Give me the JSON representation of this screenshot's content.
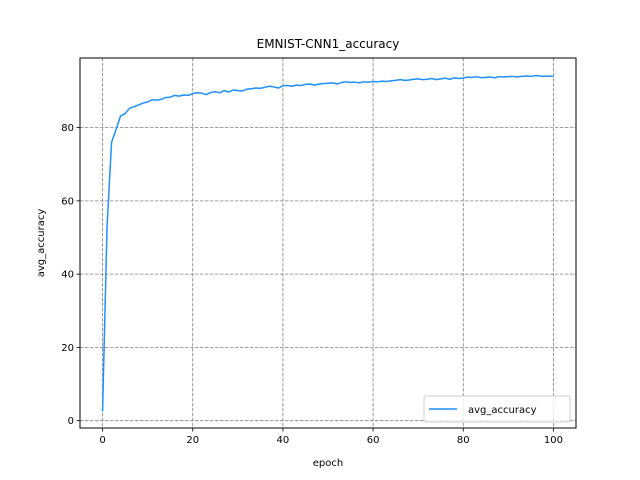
{
  "chart_data": {
    "type": "line",
    "title": "EMNIST-CNN1_accuracy",
    "xlabel": "epoch",
    "ylabel": "avg_accuracy",
    "xlim": [
      -5,
      105
    ],
    "ylim": [
      -2,
      99
    ],
    "xticks": [
      0,
      20,
      40,
      60,
      80,
      100
    ],
    "yticks": [
      0,
      20,
      40,
      60,
      80
    ],
    "grid": true,
    "legend_position": "lower-right",
    "colors": {
      "series": "#1e90ff",
      "grid": "#808080",
      "axes": "#000000"
    },
    "series": [
      {
        "name": "avg_accuracy",
        "x": [
          0,
          1,
          2,
          3,
          4,
          5,
          6,
          7,
          8,
          9,
          10,
          11,
          12,
          13,
          14,
          15,
          16,
          17,
          18,
          19,
          20,
          21,
          22,
          23,
          24,
          25,
          26,
          27,
          28,
          29,
          30,
          31,
          32,
          33,
          34,
          35,
          36,
          37,
          38,
          39,
          40,
          41,
          42,
          43,
          44,
          45,
          46,
          47,
          48,
          49,
          50,
          51,
          52,
          53,
          54,
          55,
          56,
          57,
          58,
          59,
          60,
          61,
          62,
          63,
          64,
          65,
          66,
          67,
          68,
          69,
          70,
          71,
          72,
          73,
          74,
          75,
          76,
          77,
          78,
          79,
          80,
          81,
          82,
          83,
          84,
          85,
          86,
          87,
          88,
          89,
          90,
          91,
          92,
          93,
          94,
          95,
          96,
          97,
          98,
          99,
          100
        ],
        "y": [
          2.5,
          53,
          76,
          79.5,
          83.2,
          83.8,
          85.3,
          85.7,
          86.2,
          86.7,
          87.0,
          87.6,
          87.5,
          87.7,
          88.2,
          88.3,
          88.8,
          88.6,
          88.9,
          88.8,
          89.3,
          89.5,
          89.4,
          89.0,
          89.6,
          89.8,
          89.5,
          90.1,
          89.7,
          90.3,
          90.1,
          90.0,
          90.5,
          90.6,
          90.8,
          90.7,
          91.0,
          91.3,
          91.1,
          90.8,
          91.4,
          91.5,
          91.3,
          91.6,
          91.5,
          91.8,
          91.9,
          91.6,
          91.9,
          92.0,
          92.1,
          92.2,
          91.9,
          92.3,
          92.5,
          92.3,
          92.4,
          92.2,
          92.5,
          92.4,
          92.6,
          92.5,
          92.7,
          92.6,
          92.8,
          92.9,
          93.1,
          92.9,
          93.0,
          93.2,
          93.3,
          93.1,
          93.2,
          93.4,
          93.1,
          93.3,
          93.5,
          93.2,
          93.6,
          93.4,
          93.5,
          93.8,
          93.7,
          93.9,
          93.6,
          93.7,
          93.8,
          93.6,
          93.9,
          93.8,
          93.9,
          94.0,
          93.8,
          94.0,
          94.1,
          94.0,
          94.2,
          94.1,
          94.0,
          94.1,
          94.0
        ]
      }
    ]
  }
}
